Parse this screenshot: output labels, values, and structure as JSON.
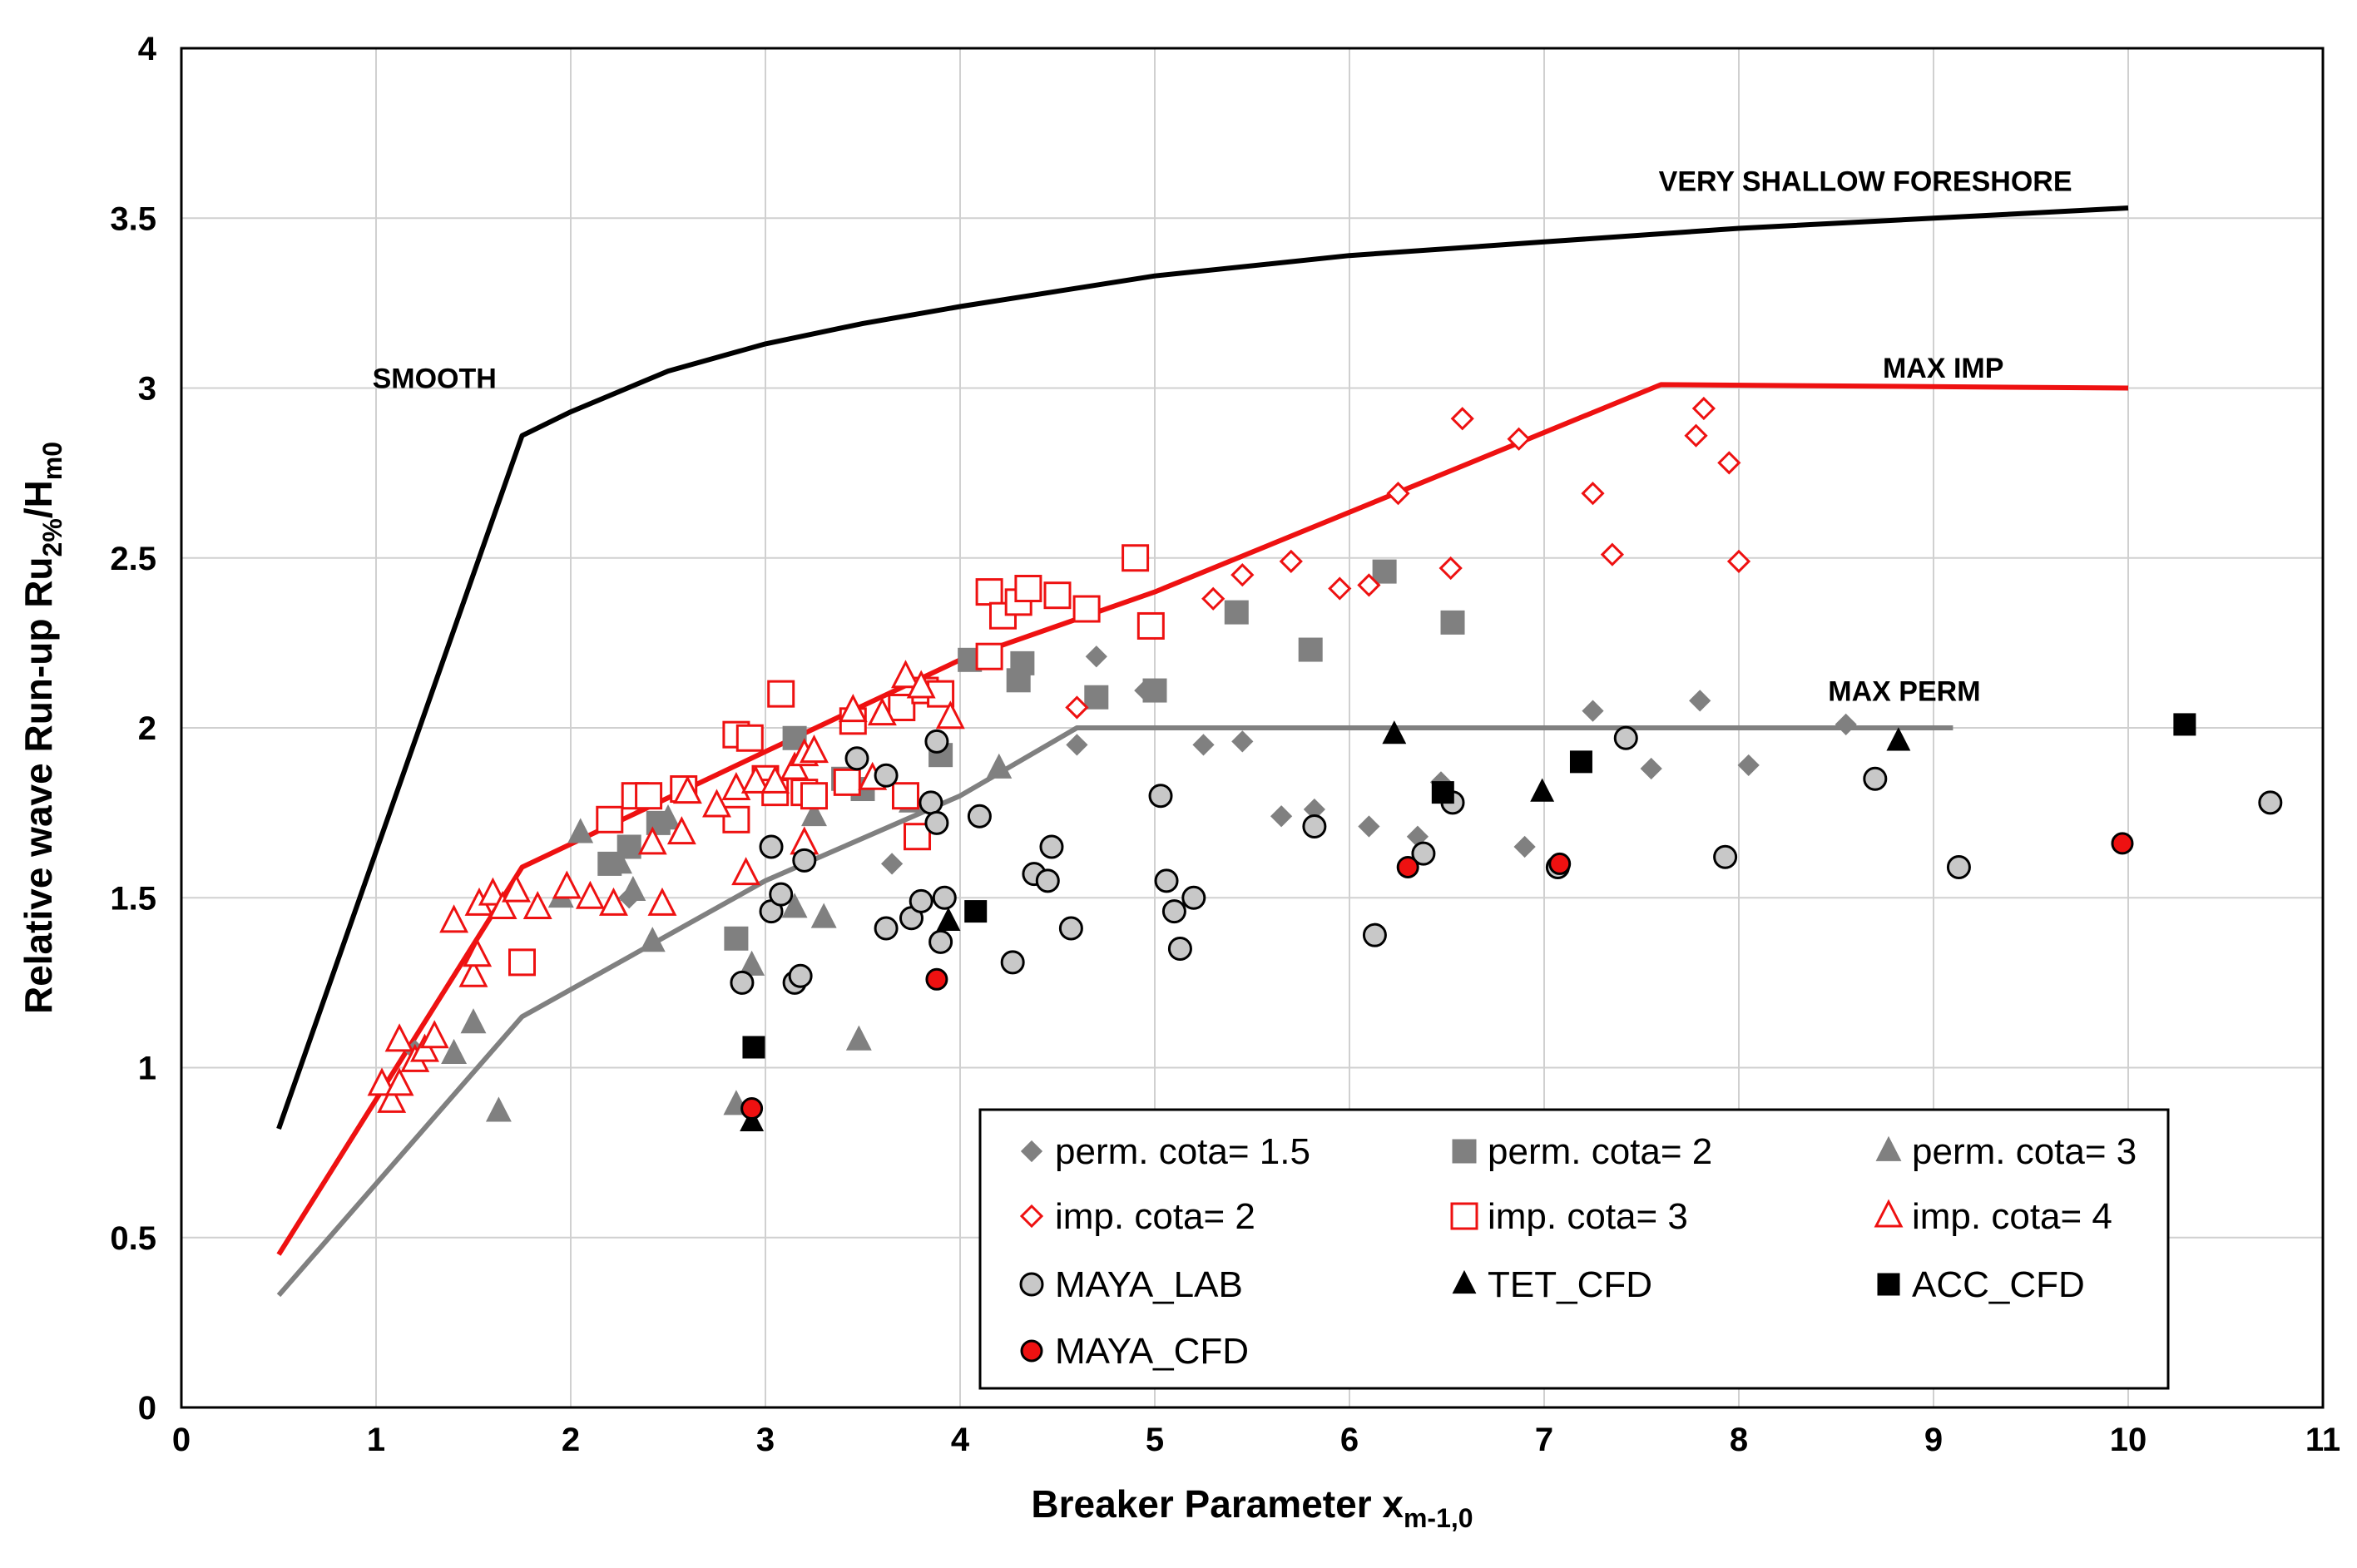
{
  "chart_data": {
    "type": "scatter",
    "xlabel": "Breaker Parameter x",
    "xlabel_sub": "m-1,0",
    "ylabel_main": "Relative wave Run-up Ru",
    "ylabel_sub1": "2%",
    "ylabel_mid": "/H",
    "ylabel_sub2": "m0",
    "xlim": [
      0,
      11
    ],
    "ylim": [
      0,
      4
    ],
    "xticks": [
      "0",
      "1",
      "2",
      "3",
      "4",
      "5",
      "6",
      "7",
      "8",
      "9",
      "10",
      "11"
    ],
    "yticks": [
      "0",
      "0.5",
      "1",
      "1.5",
      "2",
      "2.5",
      "3",
      "3.5",
      "4"
    ],
    "grid": true,
    "legend_position": "bottom-right",
    "colors": {
      "black": "#000000",
      "red": "#ee1111",
      "gray": "#808080",
      "light_gray": "#c8c8c8",
      "grid": "#d0d0d0"
    },
    "curves": [
      {
        "name": "SMOOTH",
        "label": "SMOOTH",
        "label_at": [
          1.3,
          3.0
        ],
        "label_anchor": "middle",
        "color": "#000000",
        "points": [
          [
            0.5,
            0.82
          ],
          [
            1.75,
            2.86
          ],
          [
            2.0,
            2.93
          ],
          [
            2.5,
            3.05
          ],
          [
            3.0,
            3.13
          ],
          [
            3.5,
            3.19
          ],
          [
            4.0,
            3.24
          ],
          [
            5.0,
            3.33
          ],
          [
            6.0,
            3.39
          ],
          [
            7.0,
            3.43
          ],
          [
            8.0,
            3.47
          ],
          [
            9.0,
            3.5
          ],
          [
            10.0,
            3.53
          ]
        ]
      },
      {
        "name": "VERY SHALLOW FORESHORE",
        "label": "VERY SHALLOW FORESHORE",
        "label_at": [
          8.65,
          3.58
        ],
        "label_anchor": "middle",
        "color": "#000000",
        "points": []
      },
      {
        "name": "MAX IMP",
        "label": "MAX IMP",
        "label_at": [
          9.05,
          3.03
        ],
        "label_anchor": "middle",
        "color": "#ee1111",
        "points": [
          [
            0.5,
            0.45
          ],
          [
            1.75,
            1.59
          ],
          [
            3.0,
            1.93
          ],
          [
            4.0,
            2.2
          ],
          [
            5.0,
            2.4
          ],
          [
            7.6,
            3.01
          ],
          [
            10.0,
            3.0
          ]
        ]
      },
      {
        "name": "MAX PERM",
        "label": "MAX PERM",
        "label_at": [
          8.85,
          2.08
        ],
        "label_anchor": "middle",
        "color": "#808080",
        "points": [
          [
            0.5,
            0.33
          ],
          [
            1.75,
            1.15
          ],
          [
            3.0,
            1.55
          ],
          [
            4.0,
            1.8
          ],
          [
            4.6,
            2.0
          ],
          [
            9.1,
            2.0
          ]
        ]
      }
    ],
    "series": [
      {
        "name": "perm.  cota= 1.5",
        "marker": "diamond",
        "fill": "#808080",
        "stroke": "#808080",
        "size": 11,
        "points": [
          [
            1.2,
            1.05
          ],
          [
            2.3,
            1.5
          ],
          [
            3.0,
            1.83
          ],
          [
            3.65,
            1.6
          ],
          [
            4.6,
            1.95
          ],
          [
            4.7,
            2.21
          ],
          [
            4.95,
            2.11
          ],
          [
            5.25,
            1.95
          ],
          [
            5.45,
            1.96
          ],
          [
            5.65,
            1.74
          ],
          [
            5.82,
            1.76
          ],
          [
            6.1,
            1.71
          ],
          [
            6.35,
            1.68
          ],
          [
            6.47,
            1.84
          ],
          [
            6.9,
            1.65
          ],
          [
            7.25,
            2.05
          ],
          [
            7.55,
            1.88
          ],
          [
            7.8,
            2.08
          ],
          [
            8.05,
            1.89
          ],
          [
            8.55,
            2.01
          ]
        ]
      },
      {
        "name": "perm. cota= 2",
        "marker": "square",
        "fill": "#808080",
        "stroke": "#808080",
        "size": 13,
        "points": [
          [
            2.2,
            1.6
          ],
          [
            2.3,
            1.65
          ],
          [
            2.45,
            1.72
          ],
          [
            2.85,
            1.38
          ],
          [
            3.15,
            1.97
          ],
          [
            3.4,
            1.85
          ],
          [
            3.5,
            1.82
          ],
          [
            3.9,
            1.92
          ],
          [
            4.05,
            2.2
          ],
          [
            4.3,
            2.14
          ],
          [
            4.32,
            2.19
          ],
          [
            4.7,
            2.09
          ],
          [
            5.0,
            2.11
          ],
          [
            5.42,
            2.34
          ],
          [
            5.8,
            2.23
          ],
          [
            6.18,
            2.46
          ],
          [
            6.53,
            2.31
          ]
        ]
      },
      {
        "name": "perm. cota= 3",
        "marker": "triangle",
        "fill": "#808080",
        "stroke": "#808080",
        "size": 13,
        "points": [
          [
            1.4,
            1.04
          ],
          [
            1.5,
            1.13
          ],
          [
            1.63,
            0.87
          ],
          [
            1.95,
            1.5
          ],
          [
            2.05,
            1.69
          ],
          [
            2.25,
            1.6
          ],
          [
            2.32,
            1.52
          ],
          [
            2.42,
            1.37
          ],
          [
            2.5,
            1.73
          ],
          [
            2.85,
            0.89
          ],
          [
            2.93,
            1.3
          ],
          [
            3.15,
            1.47
          ],
          [
            3.25,
            1.74
          ],
          [
            3.3,
            1.44
          ],
          [
            3.48,
            1.08
          ],
          [
            3.75,
            1.78
          ],
          [
            4.2,
            1.88
          ]
        ]
      },
      {
        "name": "imp. cota= 2",
        "marker": "diamond",
        "fill": "#ffffff",
        "stroke": "#ee1111",
        "size": 12,
        "points": [
          [
            4.6,
            2.06
          ],
          [
            5.3,
            2.38
          ],
          [
            5.45,
            2.45
          ],
          [
            5.7,
            2.49
          ],
          [
            5.95,
            2.41
          ],
          [
            6.1,
            2.42
          ],
          [
            6.25,
            2.69
          ],
          [
            6.52,
            2.47
          ],
          [
            6.58,
            2.91
          ],
          [
            6.87,
            2.85
          ],
          [
            7.25,
            2.69
          ],
          [
            7.35,
            2.51
          ],
          [
            7.78,
            2.86
          ],
          [
            7.82,
            2.94
          ],
          [
            7.95,
            2.78
          ],
          [
            8.0,
            2.49
          ]
        ]
      },
      {
        "name": "imp. cota= 3",
        "marker": "square",
        "fill": "#ffffff",
        "stroke": "#ee1111",
        "size": 15,
        "points": [
          [
            1.75,
            1.31
          ],
          [
            2.2,
            1.73
          ],
          [
            2.33,
            1.8
          ],
          [
            2.4,
            1.8
          ],
          [
            2.58,
            1.82
          ],
          [
            2.85,
            1.73
          ],
          [
            2.85,
            1.98
          ],
          [
            2.92,
            1.97
          ],
          [
            3.0,
            1.85
          ],
          [
            3.05,
            1.81
          ],
          [
            3.08,
            2.1
          ],
          [
            3.2,
            1.81
          ],
          [
            3.25,
            1.8
          ],
          [
            3.42,
            1.84
          ],
          [
            3.45,
            2.02
          ],
          [
            3.7,
            2.06
          ],
          [
            3.72,
            1.8
          ],
          [
            3.78,
            1.68
          ],
          [
            3.82,
            2.11
          ],
          [
            3.9,
            2.1
          ],
          [
            4.15,
            2.21
          ],
          [
            4.15,
            2.4
          ],
          [
            4.22,
            2.33
          ],
          [
            4.3,
            2.37
          ],
          [
            4.35,
            2.41
          ],
          [
            4.5,
            2.39
          ],
          [
            4.65,
            2.35
          ],
          [
            4.9,
            2.5
          ],
          [
            4.98,
            2.3
          ]
        ]
      },
      {
        "name": "imp. cota= 4",
        "marker": "triangle",
        "fill": "#ffffff",
        "stroke": "#ee1111",
        "size": 15,
        "points": [
          [
            1.03,
            0.95
          ],
          [
            1.08,
            0.9
          ],
          [
            1.12,
            0.95
          ],
          [
            1.12,
            1.08
          ],
          [
            1.2,
            1.02
          ],
          [
            1.25,
            1.05
          ],
          [
            1.3,
            1.09
          ],
          [
            1.4,
            1.43
          ],
          [
            1.5,
            1.27
          ],
          [
            1.52,
            1.33
          ],
          [
            1.53,
            1.48
          ],
          [
            1.6,
            1.51
          ],
          [
            1.65,
            1.47
          ],
          [
            1.72,
            1.52
          ],
          [
            1.83,
            1.47
          ],
          [
            1.98,
            1.53
          ],
          [
            2.1,
            1.5
          ],
          [
            2.22,
            1.48
          ],
          [
            2.42,
            1.66
          ],
          [
            2.47,
            1.48
          ],
          [
            2.57,
            1.69
          ],
          [
            2.6,
            1.81
          ],
          [
            2.75,
            1.77
          ],
          [
            2.85,
            1.82
          ],
          [
            2.9,
            1.57
          ],
          [
            2.95,
            1.84
          ],
          [
            3.05,
            1.84
          ],
          [
            3.15,
            1.88
          ],
          [
            3.2,
            1.92
          ],
          [
            3.2,
            1.66
          ],
          [
            3.25,
            1.93
          ],
          [
            3.45,
            2.05
          ],
          [
            3.55,
            1.85
          ],
          [
            3.6,
            2.04
          ],
          [
            3.72,
            2.15
          ],
          [
            3.8,
            2.12
          ],
          [
            3.95,
            2.03
          ]
        ]
      },
      {
        "name": "MAYA_LAB",
        "marker": "circle",
        "fill": "#c8c8c8",
        "stroke": "#000000",
        "size": 13,
        "points": [
          [
            2.88,
            1.25
          ],
          [
            3.03,
            1.46
          ],
          [
            3.03,
            1.65
          ],
          [
            3.08,
            1.51
          ],
          [
            3.15,
            1.25
          ],
          [
            3.18,
            1.27
          ],
          [
            3.2,
            1.61
          ],
          [
            3.47,
            1.91
          ],
          [
            3.62,
            1.41
          ],
          [
            3.62,
            1.86
          ],
          [
            3.75,
            1.44
          ],
          [
            3.8,
            1.49
          ],
          [
            3.85,
            1.78
          ],
          [
            3.88,
            1.72
          ],
          [
            3.88,
            1.96
          ],
          [
            3.9,
            1.37
          ],
          [
            3.92,
            1.5
          ],
          [
            4.1,
            1.74
          ],
          [
            4.27,
            1.31
          ],
          [
            4.38,
            1.57
          ],
          [
            4.45,
            1.55
          ],
          [
            4.47,
            1.65
          ],
          [
            4.57,
            1.41
          ],
          [
            5.03,
            1.8
          ],
          [
            5.06,
            1.55
          ],
          [
            5.1,
            1.46
          ],
          [
            5.13,
            1.35
          ],
          [
            5.2,
            1.5
          ],
          [
            5.82,
            1.71
          ],
          [
            6.13,
            1.39
          ],
          [
            6.38,
            1.63
          ],
          [
            6.53,
            1.78
          ],
          [
            7.07,
            1.59
          ],
          [
            7.42,
            1.97
          ],
          [
            7.93,
            1.62
          ],
          [
            8.7,
            1.85
          ],
          [
            9.13,
            1.59
          ],
          [
            10.73,
            1.78
          ]
        ]
      },
      {
        "name": "TET_CFD",
        "marker": "triangle",
        "fill": "#000000",
        "stroke": "#000000",
        "size": 12,
        "points": [
          [
            2.93,
            0.84
          ],
          [
            3.94,
            1.43
          ],
          [
            6.23,
            1.98
          ],
          [
            6.99,
            1.81
          ],
          [
            8.82,
            1.96
          ]
        ]
      },
      {
        "name": "ACC_CFD",
        "marker": "square",
        "fill": "#000000",
        "stroke": "#000000",
        "size": 12,
        "points": [
          [
            2.94,
            1.06
          ],
          [
            4.08,
            1.46
          ],
          [
            6.48,
            1.81
          ],
          [
            7.19,
            1.9
          ],
          [
            10.29,
            2.01
          ]
        ]
      },
      {
        "name": "MAYA_CFD",
        "marker": "circle",
        "fill": "#ee1111",
        "stroke": "#000000",
        "size": 12,
        "points": [
          [
            2.93,
            0.88
          ],
          [
            3.88,
            1.26
          ],
          [
            6.3,
            1.59
          ],
          [
            7.08,
            1.6
          ],
          [
            9.97,
            1.66
          ]
        ]
      }
    ]
  }
}
